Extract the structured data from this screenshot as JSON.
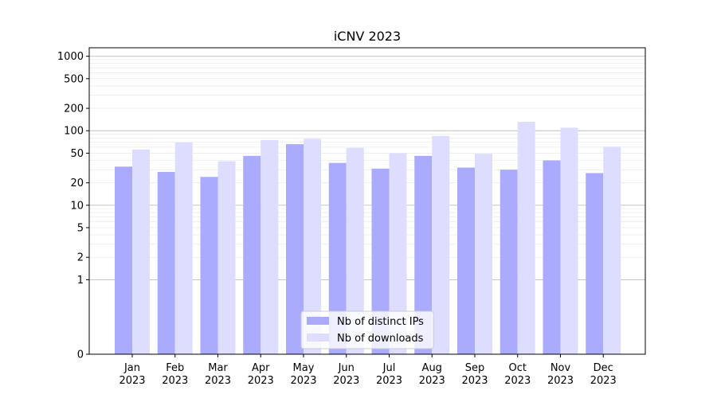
{
  "chart_data": {
    "type": "bar",
    "title": "iCNV 2023",
    "xlabel": "",
    "ylabel": "",
    "categories": [
      [
        "Jan",
        "2023"
      ],
      [
        "Feb",
        "2023"
      ],
      [
        "Mar",
        "2023"
      ],
      [
        "Apr",
        "2023"
      ],
      [
        "May",
        "2023"
      ],
      [
        "Jun",
        "2023"
      ],
      [
        "Jul",
        "2023"
      ],
      [
        "Aug",
        "2023"
      ],
      [
        "Sep",
        "2023"
      ],
      [
        "Oct",
        "2023"
      ],
      [
        "Nov",
        "2023"
      ],
      [
        "Dec",
        "2023"
      ]
    ],
    "series": [
      {
        "name": "Nb of distinct IPs",
        "color": "#aaaaff",
        "values": [
          33,
          28,
          24,
          46,
          66,
          37,
          31,
          46,
          32,
          30,
          40,
          27
        ]
      },
      {
        "name": "Nb of downloads",
        "color": "#ddddff",
        "values": [
          56,
          70,
          39,
          75,
          78,
          59,
          50,
          85,
          49,
          132,
          110,
          61
        ]
      }
    ],
    "y_scale": "symlog",
    "ylim": [
      0,
      1300
    ],
    "y_ticks": [
      0,
      1,
      2,
      5,
      10,
      20,
      50,
      100,
      200,
      500,
      1000
    ],
    "y_major_grid": [
      1,
      10,
      100,
      1000
    ],
    "y_minor_grid": [
      2,
      3,
      4,
      5,
      6,
      7,
      8,
      9,
      20,
      30,
      40,
      50,
      60,
      70,
      80,
      90,
      200,
      300,
      400,
      500,
      600,
      700,
      800,
      900
    ],
    "grid": true,
    "legend_placement": "lower-center"
  }
}
